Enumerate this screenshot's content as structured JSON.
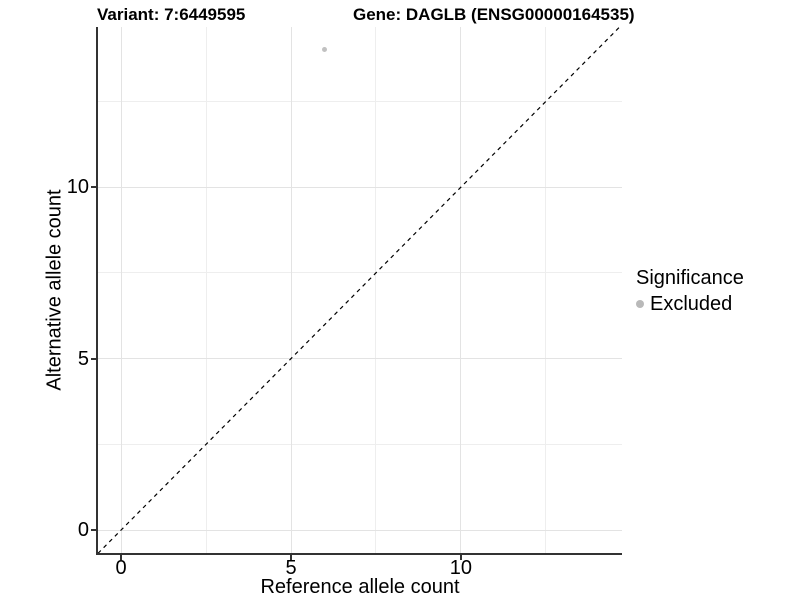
{
  "figure": {
    "title_left": "Variant: 7:6449595",
    "title_right": "Gene: DAGLB (ENSG00000164535)"
  },
  "chart_data": {
    "type": "scatter",
    "title": "Variant: 7:6449595          Gene: DAGLB (ENSG00000164535)",
    "xlabel": "Reference allele count",
    "ylabel": "Alternative allele count",
    "xlim": [
      -0.68,
      14.74
    ],
    "ylim": [
      -0.67,
      14.67
    ],
    "x_major_ticks": [
      0,
      5,
      10
    ],
    "y_major_ticks": [
      0,
      5,
      10
    ],
    "x_minor_gridlines": [
      2.5,
      7.5,
      12.5
    ],
    "y_minor_gridlines": [
      2.5,
      7.5,
      12.5
    ],
    "grid": "major+minor",
    "legend_position": "right",
    "series": [
      {
        "name": "Excluded",
        "color": "#c1c1c1",
        "points": [
          {
            "x": 6,
            "y": 14
          }
        ]
      }
    ],
    "reference_line": {
      "kind": "identity y=x",
      "style": "dashed",
      "color": "#000000"
    },
    "legend": {
      "title": "Significance",
      "items": [
        {
          "label": "Excluded",
          "marker": "circle",
          "color": "#b9b9b9"
        }
      ]
    }
  },
  "colors": {
    "background": "#ffffff",
    "axis_line": "#333333",
    "grid_major": "#e3e3e3",
    "grid_minor": "#eeeeee",
    "text": "#000000"
  }
}
